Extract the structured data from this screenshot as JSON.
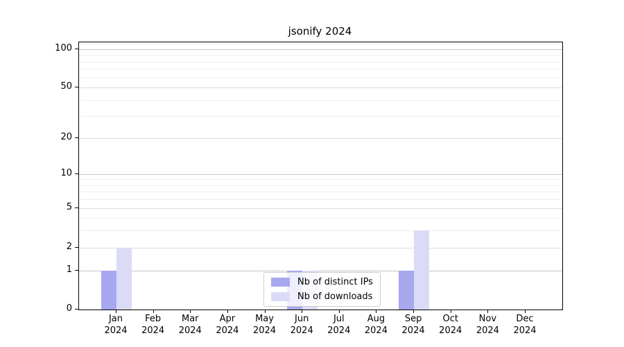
{
  "chart_data": {
    "type": "bar",
    "title": "jsonify 2024",
    "y_scale": "symlog",
    "y_ticks": [
      0,
      1,
      2,
      5,
      10,
      20,
      50,
      100
    ],
    "ylim": [
      0,
      115
    ],
    "grid": "on",
    "legend_position": "lower center",
    "x_year": "2024",
    "categories": [
      "Jan",
      "Feb",
      "Mar",
      "Apr",
      "May",
      "Jun",
      "Jul",
      "Aug",
      "Sep",
      "Oct",
      "Nov",
      "Dec"
    ],
    "series": [
      {
        "name": "Nb of distinct IPs",
        "color": "#a8a8ef",
        "values": [
          1,
          0,
          0,
          0,
          0,
          1,
          0,
          0,
          1,
          0,
          0,
          0
        ]
      },
      {
        "name": "Nb of downloads",
        "color": "#dbdbf8",
        "values": [
          2,
          0,
          0,
          0,
          0,
          1,
          0,
          0,
          3,
          0,
          0,
          0
        ]
      }
    ],
    "colors": {
      "axis": "#000000",
      "grid_decade": "#c6c6c6",
      "grid_labeled": "#dcdcdc",
      "grid_minor": "#ededed",
      "background": "#ffffff"
    }
  }
}
